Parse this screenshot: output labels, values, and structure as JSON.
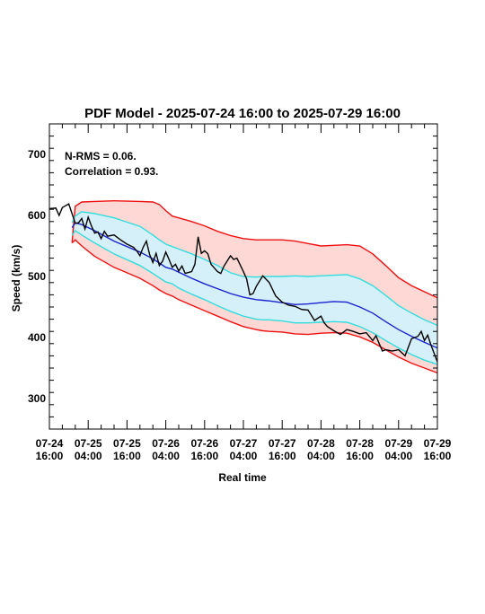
{
  "chart_data": {
    "type": "line",
    "title": "PDF Model - 2025-07-24 16:00 to 2025-07-29 16:00",
    "xlabel": "Real time",
    "ylabel": "Speed (km/s)",
    "xlim_hours": [
      0,
      120
    ],
    "ylim": [
      250,
      750
    ],
    "yticks": [
      300,
      400,
      500,
      600,
      700
    ],
    "xtick_hours": [
      0,
      12,
      24,
      36,
      48,
      60,
      72,
      84,
      96,
      108,
      120
    ],
    "xtick_labels": [
      {
        "date": "07-24",
        "time": "16:00"
      },
      {
        "date": "07-25",
        "time": "04:00"
      },
      {
        "date": "07-25",
        "time": "16:00"
      },
      {
        "date": "07-26",
        "time": "04:00"
      },
      {
        "date": "07-26",
        "time": "16:00"
      },
      {
        "date": "07-27",
        "time": "04:00"
      },
      {
        "date": "07-27",
        "time": "16:00"
      },
      {
        "date": "07-28",
        "time": "04:00"
      },
      {
        "date": "07-28",
        "time": "16:00"
      },
      {
        "date": "07-29",
        "time": "04:00"
      },
      {
        "date": "07-29",
        "time": "16:00"
      }
    ],
    "annotations": {
      "nrms": "N-RMS = 0.06.",
      "correlation": "Correlation = 0.93."
    },
    "colors": {
      "outer_fill": "#fdd8d4",
      "inner_fill": "#d6f0fa",
      "outer_line": "#ee1111",
      "inner_line": "#33dddd",
      "median_line": "#1a22cc",
      "observed_line": "#000000"
    },
    "series": {
      "upper_outer": {
        "x": [
          7,
          8,
          10,
          14,
          20,
          28,
          32,
          34,
          36,
          38,
          40,
          44,
          48,
          52,
          56,
          60,
          64,
          66,
          68,
          72,
          76,
          80,
          84,
          88,
          92,
          96,
          100,
          104,
          108,
          112,
          116,
          120
        ],
        "y": [
          555,
          615,
          622,
          623,
          624,
          623,
          622,
          618,
          608,
          599,
          596,
          590,
          583,
          574,
          567,
          562,
          560,
          560,
          560,
          560,
          558,
          554,
          550,
          551,
          552,
          550,
          537,
          518,
          498,
          485,
          475,
          465
        ]
      },
      "upper_inner": {
        "x": [
          7,
          8,
          10,
          14,
          20,
          28,
          32,
          34,
          36,
          38,
          40,
          44,
          48,
          52,
          56,
          60,
          64,
          66,
          68,
          72,
          76,
          80,
          84,
          88,
          92,
          96,
          100,
          104,
          108,
          112,
          116,
          120
        ],
        "y": [
          588,
          599,
          606,
          603,
          596,
          582,
          568,
          560,
          553,
          549,
          545,
          537,
          528,
          518,
          506,
          500,
          499,
          500,
          500,
          500,
          501,
          500,
          501,
          502,
          503,
          496,
          485,
          469,
          452,
          440,
          429,
          420
        ]
      },
      "median": {
        "x": [
          7,
          8,
          10,
          14,
          20,
          28,
          32,
          34,
          36,
          38,
          40,
          44,
          48,
          52,
          56,
          60,
          64,
          66,
          68,
          72,
          76,
          80,
          84,
          88,
          92,
          96,
          100,
          104,
          108,
          112,
          116,
          120
        ],
        "y": [
          580,
          588,
          585,
          575,
          558,
          540,
          529,
          522,
          515,
          512,
          507,
          497,
          488,
          480,
          472,
          466,
          462,
          461,
          460,
          457,
          454,
          455,
          457,
          459,
          458,
          450,
          440,
          426,
          413,
          402,
          392,
          383
        ]
      },
      "lower_inner": {
        "x": [
          7,
          8,
          10,
          14,
          20,
          28,
          32,
          34,
          36,
          38,
          40,
          44,
          48,
          52,
          56,
          60,
          64,
          66,
          68,
          72,
          76,
          80,
          84,
          88,
          92,
          96,
          100,
          104,
          108,
          112,
          116,
          120
        ],
        "y": [
          567,
          575,
          568,
          555,
          537,
          518,
          505,
          498,
          491,
          488,
          481,
          471,
          462,
          452,
          443,
          435,
          430,
          429,
          429,
          427,
          424,
          424,
          425,
          426,
          425,
          418,
          408,
          395,
          383,
          372,
          363,
          356
        ]
      },
      "lower_outer": {
        "x": [
          7,
          8,
          10,
          14,
          20,
          28,
          32,
          34,
          36,
          38,
          40,
          44,
          48,
          52,
          56,
          60,
          64,
          66,
          68,
          72,
          76,
          80,
          84,
          88,
          92,
          96,
          100,
          104,
          108,
          112,
          116,
          120
        ],
        "y": [
          555,
          560,
          550,
          533,
          515,
          497,
          485,
          478,
          472,
          468,
          462,
          453,
          444,
          435,
          426,
          418,
          413,
          411,
          410,
          409,
          406,
          405,
          407,
          408,
          407,
          401,
          392,
          380,
          368,
          358,
          350,
          342
        ]
      },
      "observed": {
        "x": [
          0,
          2,
          3,
          4,
          6,
          8,
          9,
          10,
          11,
          12,
          13,
          14,
          15,
          16,
          17,
          18,
          20,
          22,
          24,
          26,
          27,
          28,
          29,
          30,
          31,
          32,
          33,
          34,
          35,
          36,
          37,
          38,
          39,
          40,
          41,
          42,
          44,
          45,
          46,
          47,
          48,
          49,
          50,
          52,
          53,
          54,
          56,
          57,
          58,
          60,
          61,
          62,
          63,
          64,
          66,
          68,
          70,
          72,
          74,
          76,
          78,
          80,
          82,
          84,
          85,
          86,
          88,
          90,
          92,
          94,
          96,
          98,
          100,
          101,
          102,
          103,
          104,
          106,
          108,
          110,
          112,
          114,
          115,
          116,
          117,
          118,
          120
        ],
        "y": [
          611,
          612,
          600,
          613,
          619,
          587,
          588,
          595,
          578,
          597,
          583,
          571,
          573,
          562,
          574,
          566,
          568,
          560,
          553,
          548,
          542,
          534,
          548,
          558,
          536,
          523,
          538,
          518,
          525,
          540,
          528,
          515,
          520,
          509,
          517,
          505,
          508,
          520,
          565,
          538,
          542,
          537,
          520,
          508,
          505,
          517,
          534,
          528,
          530,
          508,
          496,
          470,
          472,
          484,
          501,
          490,
          468,
          458,
          453,
          451,
          446,
          445,
          428,
          435,
          424,
          418,
          411,
          405,
          413,
          410,
          406,
          408,
          395,
          403,
          390,
          378,
          380,
          378,
          380,
          370,
          398,
          402,
          410,
          395,
          404,
          388,
          360
        ]
      }
    }
  }
}
